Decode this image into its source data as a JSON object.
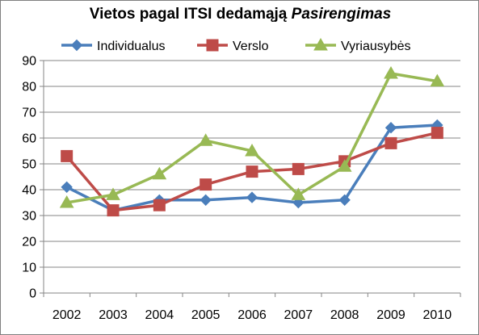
{
  "chart_data": {
    "type": "line",
    "title": "Vietos pagal ITSI dedamąją",
    "title_italic": "Pasirengimas",
    "categories": [
      "2002",
      "2003",
      "2004",
      "2005",
      "2006",
      "2007",
      "2008",
      "2009",
      "2010"
    ],
    "ylim": [
      0,
      90
    ],
    "yticks": [
      "0",
      "10",
      "20",
      "30",
      "40",
      "50",
      "60",
      "70",
      "80",
      "90"
    ],
    "grid": true,
    "legend_position": "top",
    "series": [
      {
        "name": "Individualus",
        "color": "#4a7ebb",
        "marker": "diamond",
        "values": [
          41,
          32,
          36,
          36,
          37,
          35,
          36,
          64,
          65
        ]
      },
      {
        "name": "Verslo",
        "color": "#be4b48",
        "marker": "square",
        "values": [
          53,
          32,
          34,
          42,
          47,
          48,
          51,
          58,
          62
        ]
      },
      {
        "name": "Vyriausybės",
        "color": "#98b954",
        "marker": "triangle",
        "values": [
          35,
          38,
          46,
          59,
          55,
          38,
          49,
          85,
          82
        ]
      }
    ]
  }
}
